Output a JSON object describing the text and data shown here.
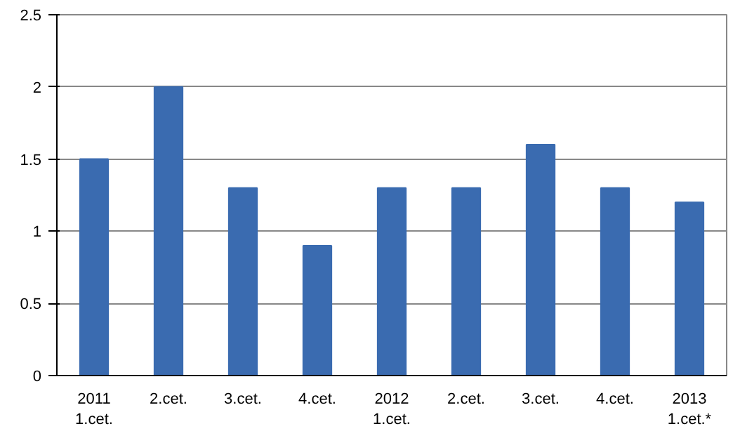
{
  "chart_data": {
    "type": "bar",
    "categories": [
      "2011\n1.cet.",
      "2.cet.",
      "3.cet.",
      "4.cet.",
      "2012\n1.cet.",
      "2.cet.",
      "3.cet.",
      "4.cet.",
      "2013\n1.cet.*"
    ],
    "values": [
      1.5,
      2.0,
      1.3,
      0.9,
      1.3,
      1.3,
      1.6,
      1.3,
      1.2
    ],
    "color": "#3a6bb0",
    "ylim": [
      0,
      2.5
    ],
    "yticks": [
      0,
      0.5,
      1,
      1.5,
      2,
      2.5
    ],
    "grid": "y"
  }
}
